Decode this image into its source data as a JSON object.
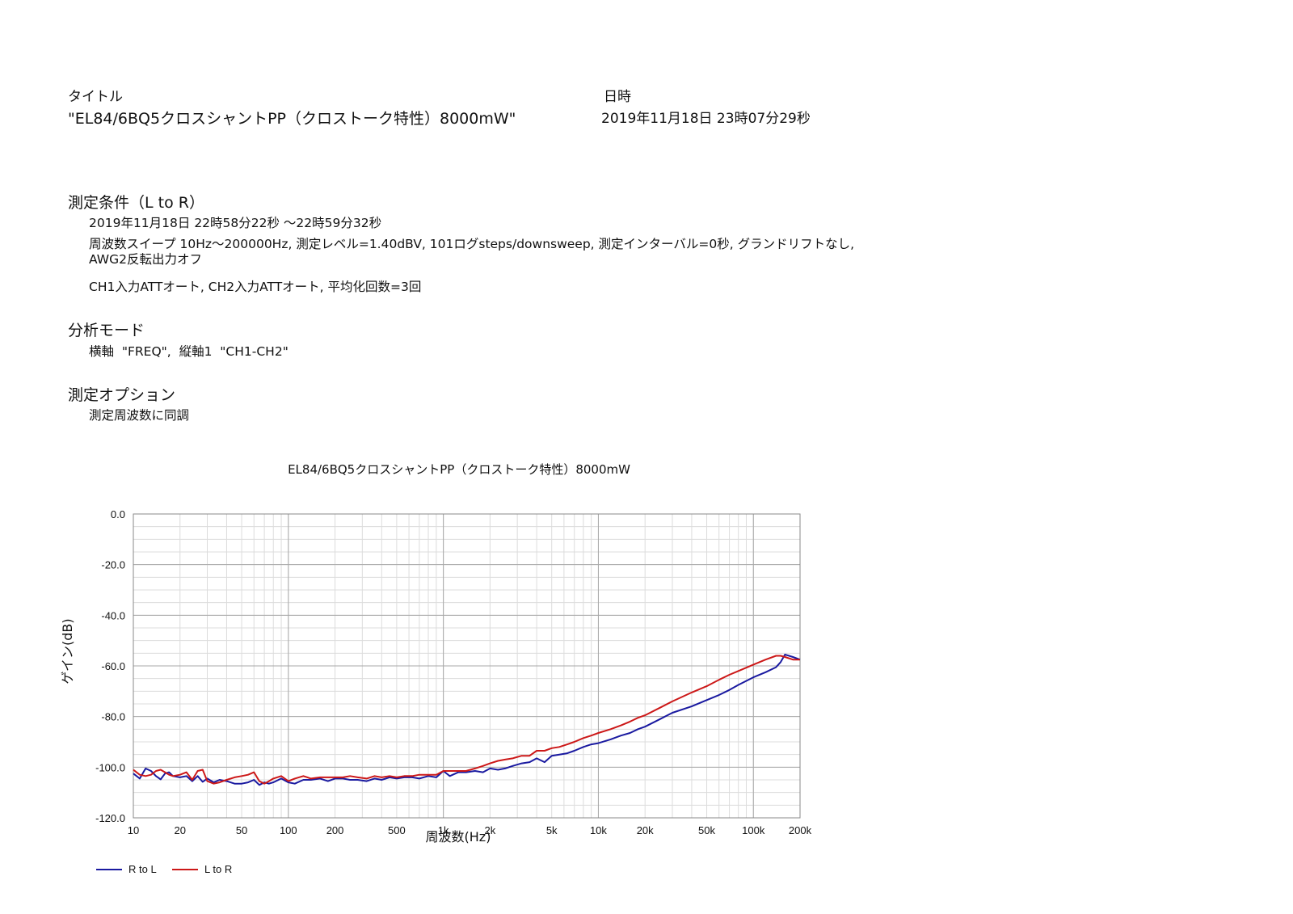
{
  "header": {
    "title_label": "タイトル",
    "title_value": "\"EL84/6BQ5クロスシャントPP（クロストーク特性）8000mW\"",
    "datetime_label": "日時",
    "datetime_value": "2019年11月18日 23時07分29秒"
  },
  "conditions": {
    "heading": "測定条件（L to R）",
    "line1": "2019年11月18日 22時58分22秒 ～22時59分32秒",
    "line2a": "周波数スイープ 10Hz～200000Hz, 測定レベル=1.40dBV, 101ログsteps/downsweep, 測定インターバル=0秒, グランドリフトなし,",
    "line2b": "AWG2反転出力オフ",
    "line3": "CH1入力ATTオート, CH2入力ATTオート, 平均化回数=3回"
  },
  "analysis": {
    "heading": "分析モード",
    "line": "横軸  \"FREQ\",  縦軸1  \"CH1-CH2\""
  },
  "options": {
    "heading": "測定オプション",
    "line": "測定周波数に同調"
  },
  "chart_data": {
    "type": "line",
    "title": "EL84/6BQ5クロスシャントPP（クロストーク特性）8000mW",
    "xlabel": "周波数(Hz)",
    "ylabel": "ゲイン(dB)",
    "xscale": "log",
    "xlim": [
      10,
      200000
    ],
    "ylim": [
      -120,
      0
    ],
    "grid": true,
    "x_ticks": [
      10,
      20,
      50,
      100,
      200,
      500,
      1000,
      2000,
      5000,
      10000,
      20000,
      50000,
      100000,
      200000
    ],
    "x_tick_labels": [
      "10",
      "20",
      "50",
      "100",
      "200",
      "500",
      "1k",
      "2k",
      "5k",
      "10k",
      "20k",
      "50k",
      "100k",
      "200k"
    ],
    "y_ticks": [
      0,
      -20,
      -40,
      -60,
      -80,
      -100,
      -120
    ],
    "y_tick_labels": [
      "0.0",
      "-20.0",
      "-40.0",
      "-60.0",
      "-80.0",
      "-100.0",
      "-120.0"
    ],
    "legend_position": "bottom-left",
    "series": [
      {
        "name": "R to L",
        "color": "#1a1aa0",
        "x": [
          10,
          11,
          12,
          13,
          14,
          15,
          16,
          17,
          18,
          20,
          22,
          24,
          26,
          28,
          30,
          33,
          36,
          40,
          45,
          50,
          55,
          60,
          65,
          70,
          75,
          80,
          90,
          100,
          110,
          125,
          140,
          160,
          180,
          200,
          225,
          250,
          280,
          320,
          360,
          400,
          450,
          500,
          560,
          630,
          700,
          800,
          900,
          1000,
          1100,
          1250,
          1400,
          1600,
          1800,
          2000,
          2250,
          2500,
          2800,
          3200,
          3600,
          4000,
          4500,
          5000,
          5600,
          6300,
          7000,
          8000,
          9000,
          10000,
          12000,
          14000,
          16000,
          18000,
          20000,
          25000,
          30000,
          40000,
          50000,
          60000,
          70000,
          80000,
          100000,
          120000,
          140000,
          150000,
          160000,
          180000,
          200000
        ],
        "y": [
          -102.5,
          -104.5,
          -100.5,
          -101.5,
          -103.5,
          -104.8,
          -102.5,
          -102,
          -103.5,
          -104,
          -103.5,
          -105.5,
          -103.5,
          -105.8,
          -104.5,
          -106,
          -105,
          -105.5,
          -106.5,
          -106.5,
          -106,
          -105,
          -107,
          -106,
          -106.5,
          -106,
          -104.5,
          -106,
          -106.5,
          -105,
          -105,
          -104.5,
          -105.5,
          -104.5,
          -104.5,
          -105,
          -105,
          -105.5,
          -104.5,
          -105,
          -104,
          -104.5,
          -104,
          -104,
          -104.5,
          -103.5,
          -104,
          -101.5,
          -103.5,
          -102,
          -102,
          -101.5,
          -102,
          -100.5,
          -101,
          -100.5,
          -99.5,
          -98.5,
          -98,
          -96.5,
          -98,
          -95.5,
          -95,
          -94.5,
          -93.5,
          -92,
          -91,
          -90.5,
          -89,
          -87.5,
          -86.5,
          -85,
          -84,
          -81,
          -78.5,
          -76,
          -73.5,
          -71.5,
          -69.5,
          -67.5,
          -64.5,
          -62.5,
          -60.5,
          -58.5,
          -55.5,
          -56.5,
          -57.5
        ]
      },
      {
        "name": "L to R",
        "color": "#cc1818",
        "x": [
          10,
          11,
          12,
          13,
          14,
          15,
          16,
          17,
          18,
          20,
          22,
          24,
          26,
          28,
          30,
          33,
          36,
          40,
          45,
          50,
          55,
          60,
          65,
          70,
          75,
          80,
          90,
          100,
          110,
          125,
          140,
          160,
          180,
          200,
          225,
          250,
          280,
          320,
          360,
          400,
          450,
          500,
          560,
          630,
          700,
          800,
          900,
          1000,
          1100,
          1250,
          1400,
          1600,
          1800,
          2000,
          2250,
          2500,
          2800,
          3200,
          3600,
          4000,
          4500,
          5000,
          5600,
          6300,
          7000,
          8000,
          9000,
          10000,
          12000,
          14000,
          16000,
          18000,
          20000,
          25000,
          30000,
          40000,
          50000,
          60000,
          70000,
          80000,
          100000,
          120000,
          140000,
          150000,
          160000,
          180000,
          200000
        ],
        "y": [
          -101,
          -103,
          -103.5,
          -103,
          -101.5,
          -101,
          -102,
          -103,
          -103.5,
          -103,
          -102,
          -105,
          -101.5,
          -101,
          -105.5,
          -106.5,
          -106,
          -105,
          -104,
          -103.5,
          -103,
          -102,
          -105.5,
          -106.5,
          -105.5,
          -104.5,
          -103.5,
          -105.5,
          -104.5,
          -103.5,
          -104.5,
          -104,
          -104,
          -104,
          -104,
          -103.5,
          -104,
          -104.5,
          -103.5,
          -104,
          -103.5,
          -104,
          -103.5,
          -103.5,
          -103,
          -103,
          -103,
          -101.5,
          -101.5,
          -101.5,
          -101.5,
          -100.5,
          -99.5,
          -98.5,
          -97.5,
          -97,
          -96.5,
          -95.5,
          -95.5,
          -93.5,
          -93.5,
          -92.5,
          -92,
          -91,
          -90,
          -88.5,
          -87.5,
          -86.5,
          -85,
          -83.5,
          -82,
          -80.5,
          -79.5,
          -76.5,
          -74,
          -70.5,
          -68,
          -65.5,
          -63.5,
          -62,
          -59.5,
          -57.5,
          -56,
          -56,
          -56.5,
          -57.5,
          -57.5
        ]
      }
    ]
  }
}
